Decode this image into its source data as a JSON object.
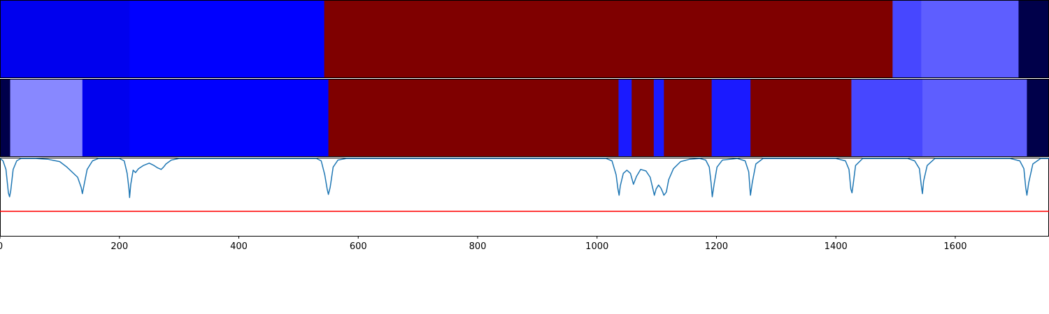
{
  "chart_data": {
    "type": "heatmap",
    "title": "",
    "xlabel": "",
    "ylabel": "",
    "xlim": [
      0,
      1757
    ],
    "x_ticks": [
      {
        "value": 0,
        "label": "0"
      },
      {
        "value": 200,
        "label": "200"
      },
      {
        "value": 400,
        "label": "400"
      },
      {
        "value": 600,
        "label": "600"
      },
      {
        "value": 800,
        "label": "800"
      },
      {
        "value": 1000,
        "label": "1000"
      },
      {
        "value": 1200,
        "label": "1200"
      },
      {
        "value": 1400,
        "label": "1400"
      },
      {
        "value": 1600,
        "label": "1600"
      }
    ],
    "rows": [
      {
        "segments": [
          {
            "start": 0,
            "end": 217,
            "color": "#0000ee"
          },
          {
            "start": 217,
            "end": 543,
            "color": "#0000ff"
          },
          {
            "start": 543,
            "end": 1495,
            "color": "#7f0000"
          },
          {
            "start": 1495,
            "end": 1543,
            "color": "#4747ff"
          },
          {
            "start": 1543,
            "end": 1706,
            "color": "#5e5eff"
          },
          {
            "start": 1706,
            "end": 1757,
            "color": "#00004a"
          }
        ]
      },
      {
        "segments": [
          {
            "start": 0,
            "end": 17,
            "color": "#00004a"
          },
          {
            "start": 17,
            "end": 138,
            "color": "#8888ff"
          },
          {
            "start": 138,
            "end": 217,
            "color": "#0000ee"
          },
          {
            "start": 217,
            "end": 550,
            "color": "#0000ff"
          },
          {
            "start": 550,
            "end": 1036,
            "color": "#7f0000"
          },
          {
            "start": 1036,
            "end": 1058,
            "color": "#1a1aff"
          },
          {
            "start": 1058,
            "end": 1095,
            "color": "#7f0000"
          },
          {
            "start": 1095,
            "end": 1112,
            "color": "#1a1aff"
          },
          {
            "start": 1112,
            "end": 1192,
            "color": "#7f0000"
          },
          {
            "start": 1192,
            "end": 1257,
            "color": "#1a1aff"
          },
          {
            "start": 1257,
            "end": 1426,
            "color": "#7f0000"
          },
          {
            "start": 1426,
            "end": 1545,
            "color": "#4747ff"
          },
          {
            "start": 1545,
            "end": 1720,
            "color": "#5e5eff"
          },
          {
            "start": 1720,
            "end": 1757,
            "color": "#00004a"
          }
        ]
      }
    ],
    "signal": {
      "color": "#1f77b4",
      "ylim": [
        0,
        1
      ],
      "points": [
        [
          0,
          0.99
        ],
        [
          5,
          0.96
        ],
        [
          10,
          0.85
        ],
        [
          14,
          0.55
        ],
        [
          16,
          0.5
        ],
        [
          18,
          0.58
        ],
        [
          22,
          0.85
        ],
        [
          28,
          0.96
        ],
        [
          35,
          0.99
        ],
        [
          60,
          0.99
        ],
        [
          80,
          0.98
        ],
        [
          100,
          0.95
        ],
        [
          112,
          0.88
        ],
        [
          130,
          0.75
        ],
        [
          136,
          0.62
        ],
        [
          138,
          0.54
        ],
        [
          140,
          0.62
        ],
        [
          146,
          0.85
        ],
        [
          155,
          0.96
        ],
        [
          165,
          0.99
        ],
        [
          200,
          0.99
        ],
        [
          208,
          0.96
        ],
        [
          213,
          0.8
        ],
        [
          216,
          0.6
        ],
        [
          217,
          0.49
        ],
        [
          219,
          0.66
        ],
        [
          223,
          0.84
        ],
        [
          227,
          0.81
        ],
        [
          232,
          0.86
        ],
        [
          240,
          0.9
        ],
        [
          250,
          0.93
        ],
        [
          258,
          0.9
        ],
        [
          264,
          0.87
        ],
        [
          270,
          0.85
        ],
        [
          274,
          0.88
        ],
        [
          278,
          0.92
        ],
        [
          287,
          0.97
        ],
        [
          300,
          0.99
        ],
        [
          530,
          0.99
        ],
        [
          538,
          0.96
        ],
        [
          544,
          0.78
        ],
        [
          548,
          0.6
        ],
        [
          550,
          0.53
        ],
        [
          553,
          0.62
        ],
        [
          558,
          0.88
        ],
        [
          566,
          0.97
        ],
        [
          580,
          0.99
        ],
        [
          1015,
          0.99
        ],
        [
          1025,
          0.96
        ],
        [
          1032,
          0.78
        ],
        [
          1035,
          0.6
        ],
        [
          1037,
          0.52
        ],
        [
          1039,
          0.64
        ],
        [
          1044,
          0.8
        ],
        [
          1050,
          0.84
        ],
        [
          1056,
          0.8
        ],
        [
          1061,
          0.66
        ],
        [
          1066,
          0.76
        ],
        [
          1073,
          0.85
        ],
        [
          1082,
          0.83
        ],
        [
          1089,
          0.75
        ],
        [
          1093,
          0.62
        ],
        [
          1096,
          0.52
        ],
        [
          1099,
          0.6
        ],
        [
          1103,
          0.65
        ],
        [
          1107,
          0.61
        ],
        [
          1110,
          0.56
        ],
        [
          1112,
          0.52
        ],
        [
          1116,
          0.56
        ],
        [
          1120,
          0.72
        ],
        [
          1128,
          0.86
        ],
        [
          1140,
          0.95
        ],
        [
          1155,
          0.98
        ],
        [
          1172,
          0.99
        ],
        [
          1182,
          0.97
        ],
        [
          1188,
          0.88
        ],
        [
          1191,
          0.68
        ],
        [
          1193,
          0.5
        ],
        [
          1196,
          0.66
        ],
        [
          1201,
          0.88
        ],
        [
          1210,
          0.97
        ],
        [
          1235,
          0.99
        ],
        [
          1248,
          0.96
        ],
        [
          1254,
          0.82
        ],
        [
          1257,
          0.52
        ],
        [
          1260,
          0.68
        ],
        [
          1266,
          0.92
        ],
        [
          1278,
          0.99
        ],
        [
          1400,
          0.99
        ],
        [
          1416,
          0.96
        ],
        [
          1422,
          0.85
        ],
        [
          1425,
          0.6
        ],
        [
          1427,
          0.55
        ],
        [
          1429,
          0.66
        ],
        [
          1433,
          0.9
        ],
        [
          1445,
          0.99
        ],
        [
          1520,
          0.99
        ],
        [
          1532,
          0.96
        ],
        [
          1540,
          0.86
        ],
        [
          1543,
          0.65
        ],
        [
          1545,
          0.54
        ],
        [
          1547,
          0.7
        ],
        [
          1553,
          0.9
        ],
        [
          1566,
          0.99
        ],
        [
          1692,
          0.99
        ],
        [
          1708,
          0.96
        ],
        [
          1715,
          0.86
        ],
        [
          1718,
          0.62
        ],
        [
          1720,
          0.52
        ],
        [
          1723,
          0.68
        ],
        [
          1730,
          0.92
        ],
        [
          1743,
          0.99
        ],
        [
          1757,
          0.99
        ]
      ]
    },
    "threshold": {
      "value": 0.315,
      "color": "#ff0000"
    }
  }
}
